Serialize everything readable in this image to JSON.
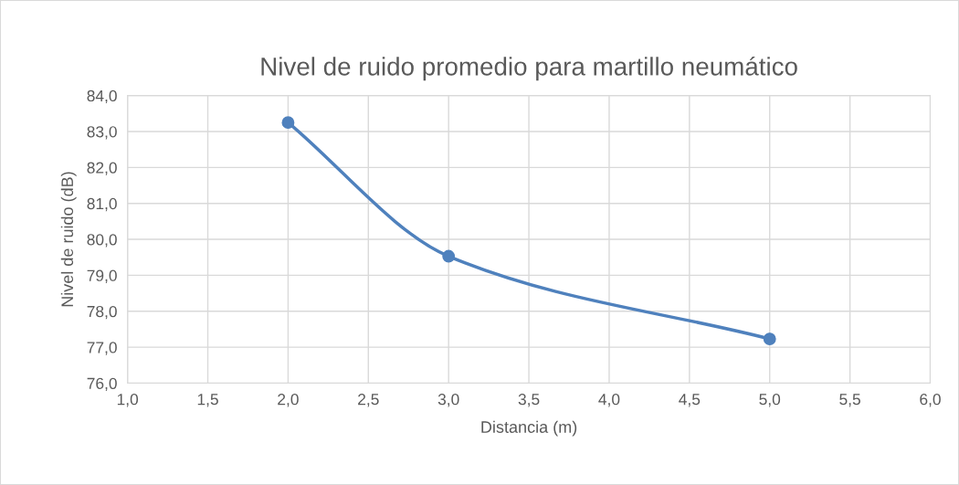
{
  "chart_data": {
    "type": "line",
    "title": "Nivel de ruido promedio para martillo neumático",
    "xlabel": "Distancia (m)",
    "ylabel": "Nivel de ruido (dB)",
    "x": [
      2.0,
      3.0,
      5.0
    ],
    "series": [
      {
        "color": "#4f81bd",
        "values": [
          83.25,
          79.53,
          77.23
        ]
      }
    ],
    "xlim": [
      1.0,
      6.0
    ],
    "ylim": [
      76.0,
      84.0
    ],
    "xticks": [
      {
        "value": 1.0,
        "label": "1,0"
      },
      {
        "value": 1.5,
        "label": "1,5"
      },
      {
        "value": 2.0,
        "label": "2,0"
      },
      {
        "value": 2.5,
        "label": "2,5"
      },
      {
        "value": 3.0,
        "label": "3,0"
      },
      {
        "value": 3.5,
        "label": "3,5"
      },
      {
        "value": 4.0,
        "label": "4,0"
      },
      {
        "value": 4.5,
        "label": "4,5"
      },
      {
        "value": 5.0,
        "label": "5,0"
      },
      {
        "value": 5.5,
        "label": "5,5"
      },
      {
        "value": 6.0,
        "label": "6,0"
      }
    ],
    "yticks": [
      {
        "value": 76.0,
        "label": "76,0"
      },
      {
        "value": 77.0,
        "label": "77,0"
      },
      {
        "value": 78.0,
        "label": "78,0"
      },
      {
        "value": 79.0,
        "label": "79,0"
      },
      {
        "value": 80.0,
        "label": "80,0"
      },
      {
        "value": 81.0,
        "label": "81,0"
      },
      {
        "value": 82.0,
        "label": "82,0"
      },
      {
        "value": 83.0,
        "label": "83,0"
      },
      {
        "value": 84.0,
        "label": "84,0"
      }
    ],
    "grid": true,
    "marker": "circle",
    "line_style": "solid",
    "legend": false
  }
}
